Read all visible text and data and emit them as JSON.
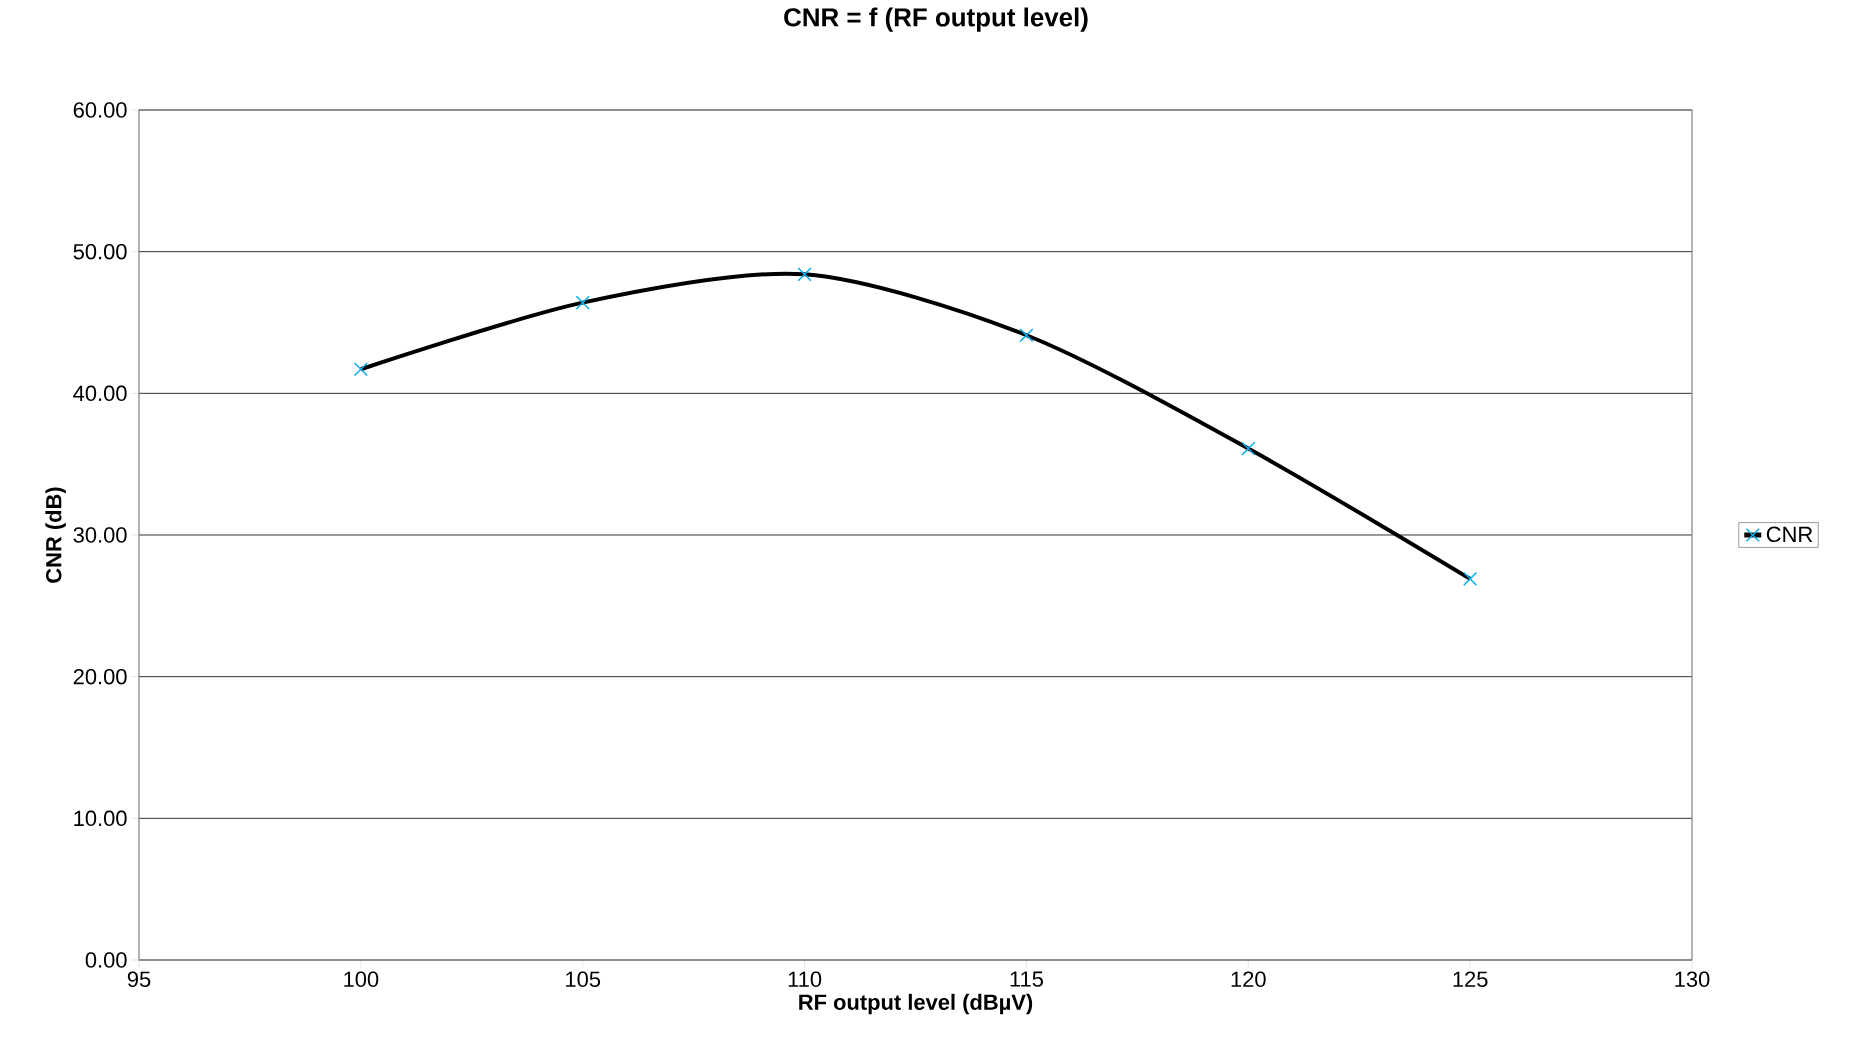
{
  "chart_data": {
    "type": "line",
    "title": "CNR = f (RF output level)",
    "xlabel": "RF output level (dBµV)",
    "ylabel": "CNR (dB)",
    "x": [
      100,
      105,
      110,
      115,
      120,
      125
    ],
    "series": [
      {
        "name": "CNR",
        "color": "#000000",
        "values": [
          41.7,
          46.4,
          48.4,
          44.1,
          36.1,
          26.9
        ]
      }
    ],
    "xlim": [
      95,
      130
    ],
    "xticks": [
      95,
      100,
      105,
      110,
      115,
      120,
      125,
      130
    ],
    "ylim": [
      0,
      60
    ],
    "yticks": [
      {
        "value": 0,
        "label": "0.00"
      },
      {
        "value": 10,
        "label": "10.00"
      },
      {
        "value": 20,
        "label": "20.00"
      },
      {
        "value": 30,
        "label": "30.00"
      },
      {
        "value": 40,
        "label": "40.00"
      },
      {
        "value": 50,
        "label": "50.00"
      },
      {
        "value": 60,
        "label": "60.00"
      }
    ],
    "grid": "y",
    "legend": "right",
    "marker": "cross",
    "line_style": "solid"
  }
}
